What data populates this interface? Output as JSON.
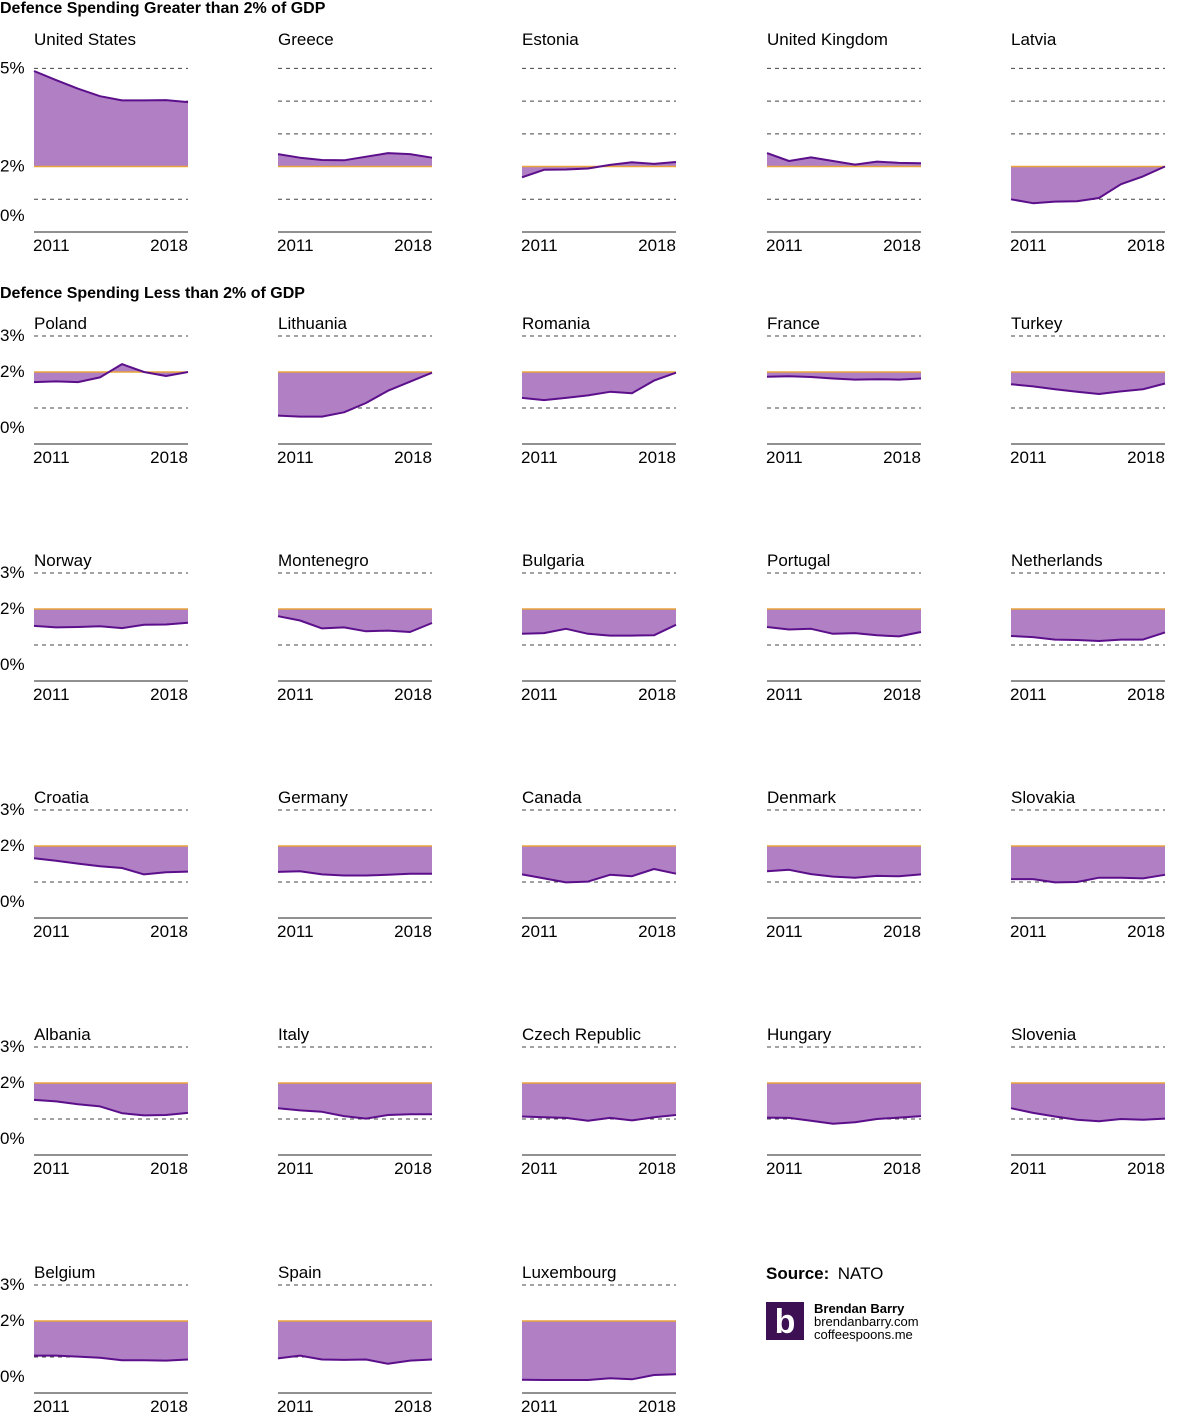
{
  "sections": [
    {
      "title": "Defence Spending Greater than 2% of GDP"
    },
    {
      "title": "Defence Spending Less than 2% of GDP"
    }
  ],
  "source": {
    "label": "Source:",
    "value": "NATO"
  },
  "brand": {
    "name": "Brendan Barry",
    "lines": [
      "brendanbarry.com",
      "coffeespoons.me"
    ],
    "logo_letter": "b",
    "logo_color": "#3d1054"
  },
  "colors": {
    "fill": "#b07fc4",
    "line": "#5c0f8b",
    "threshold": "#e8a33c",
    "dashed": "#444444",
    "baseline": "#222222"
  },
  "chart_data": [
    {
      "type": "area",
      "title": "United States",
      "x": [
        2011,
        2012,
        2013,
        2014,
        2015,
        2016,
        2017,
        2018
      ],
      "values": [
        4.92,
        4.64,
        4.38,
        4.15,
        4.02,
        4.02,
        4.03,
        3.97
      ],
      "threshold": 2,
      "ylim": [
        0,
        5.5
      ],
      "ytick_labels": [
        "5%",
        "2%",
        "0%"
      ],
      "xtick_labels": [
        "2011",
        "2018"
      ]
    },
    {
      "type": "area",
      "title": "Greece",
      "x": [
        2011,
        2012,
        2013,
        2014,
        2015,
        2016,
        2017,
        2018
      ],
      "values": [
        2.38,
        2.27,
        2.2,
        2.19,
        2.3,
        2.41,
        2.38,
        2.27
      ],
      "threshold": 2,
      "ylim": [
        0,
        5.5
      ],
      "xtick_labels": [
        "2011",
        "2018"
      ]
    },
    {
      "type": "area",
      "title": "Estonia",
      "x": [
        2011,
        2012,
        2013,
        2014,
        2015,
        2016,
        2017,
        2018
      ],
      "values": [
        1.67,
        1.9,
        1.91,
        1.94,
        2.05,
        2.13,
        2.08,
        2.14
      ],
      "threshold": 2,
      "ylim": [
        0,
        5.5
      ],
      "xtick_labels": [
        "2011",
        "2018"
      ]
    },
    {
      "type": "area",
      "title": "United Kingdom",
      "x": [
        2011,
        2012,
        2013,
        2014,
        2015,
        2016,
        2017,
        2018
      ],
      "values": [
        2.41,
        2.17,
        2.28,
        2.17,
        2.06,
        2.15,
        2.11,
        2.1
      ],
      "threshold": 2,
      "ylim": [
        0,
        5.5
      ],
      "xtick_labels": [
        "2011",
        "2018"
      ]
    },
    {
      "type": "area",
      "title": "Latvia",
      "x": [
        2011,
        2012,
        2013,
        2014,
        2015,
        2016,
        2017,
        2018
      ],
      "values": [
        1.0,
        0.88,
        0.93,
        0.94,
        1.04,
        1.46,
        1.7,
        2.0
      ],
      "threshold": 2,
      "ylim": [
        0,
        5.5
      ],
      "xtick_labels": [
        "2011",
        "2018"
      ]
    },
    {
      "type": "area",
      "title": "Poland",
      "x": [
        2011,
        2012,
        2013,
        2014,
        2015,
        2016,
        2017,
        2018
      ],
      "values": [
        1.72,
        1.74,
        1.72,
        1.85,
        2.22,
        2.0,
        1.89,
        2.0
      ],
      "threshold": 2,
      "ylim": [
        0,
        3
      ],
      "ytick_labels": [
        "3%",
        "2%",
        "0%"
      ],
      "xtick_labels": [
        "2011",
        "2018"
      ]
    },
    {
      "type": "area",
      "title": "Lithuania",
      "x": [
        2011,
        2012,
        2013,
        2014,
        2015,
        2016,
        2017,
        2018
      ],
      "values": [
        0.79,
        0.76,
        0.76,
        0.88,
        1.14,
        1.48,
        1.73,
        1.98
      ],
      "threshold": 2,
      "ylim": [
        0,
        3
      ],
      "xtick_labels": [
        "2011",
        "2018"
      ]
    },
    {
      "type": "area",
      "title": "Romania",
      "x": [
        2011,
        2012,
        2013,
        2014,
        2015,
        2016,
        2017,
        2018
      ],
      "values": [
        1.28,
        1.22,
        1.28,
        1.35,
        1.45,
        1.41,
        1.76,
        1.98
      ],
      "threshold": 2,
      "ylim": [
        0,
        3
      ],
      "xtick_labels": [
        "2011",
        "2018"
      ]
    },
    {
      "type": "area",
      "title": "France",
      "x": [
        2011,
        2012,
        2013,
        2014,
        2015,
        2016,
        2017,
        2018
      ],
      "values": [
        1.87,
        1.88,
        1.86,
        1.82,
        1.79,
        1.8,
        1.79,
        1.82
      ],
      "threshold": 2,
      "ylim": [
        0,
        3
      ],
      "xtick_labels": [
        "2011",
        "2018"
      ]
    },
    {
      "type": "area",
      "title": "Turkey",
      "x": [
        2011,
        2012,
        2013,
        2014,
        2015,
        2016,
        2017,
        2018
      ],
      "values": [
        1.66,
        1.6,
        1.52,
        1.45,
        1.39,
        1.46,
        1.52,
        1.68
      ],
      "threshold": 2,
      "ylim": [
        0,
        3
      ],
      "xtick_labels": [
        "2011",
        "2018"
      ]
    },
    {
      "type": "area",
      "title": "Norway",
      "x": [
        2011,
        2012,
        2013,
        2014,
        2015,
        2016,
        2017,
        2018
      ],
      "values": [
        1.53,
        1.49,
        1.5,
        1.52,
        1.47,
        1.56,
        1.57,
        1.62
      ],
      "threshold": 2,
      "ylim": [
        0,
        3
      ],
      "ytick_labels": [
        "3%",
        "2%",
        "0%"
      ],
      "xtick_labels": [
        "2011",
        "2018"
      ]
    },
    {
      "type": "area",
      "title": "Montenegro",
      "x": [
        2011,
        2012,
        2013,
        2014,
        2015,
        2016,
        2017,
        2018
      ],
      "values": [
        1.8,
        1.68,
        1.46,
        1.49,
        1.38,
        1.4,
        1.36,
        1.61
      ],
      "threshold": 2,
      "ylim": [
        0,
        3
      ],
      "xtick_labels": [
        "2011",
        "2018"
      ]
    },
    {
      "type": "area",
      "title": "Bulgaria",
      "x": [
        2011,
        2012,
        2013,
        2014,
        2015,
        2016,
        2017,
        2018
      ],
      "values": [
        1.31,
        1.33,
        1.45,
        1.31,
        1.26,
        1.26,
        1.27,
        1.56
      ],
      "threshold": 2,
      "ylim": [
        0,
        3
      ],
      "xtick_labels": [
        "2011",
        "2018"
      ]
    },
    {
      "type": "area",
      "title": "Portugal",
      "x": [
        2011,
        2012,
        2013,
        2014,
        2015,
        2016,
        2017,
        2018
      ],
      "values": [
        1.5,
        1.43,
        1.45,
        1.31,
        1.33,
        1.27,
        1.24,
        1.36
      ],
      "threshold": 2,
      "ylim": [
        0,
        3
      ],
      "xtick_labels": [
        "2011",
        "2018"
      ]
    },
    {
      "type": "area",
      "title": "Netherlands",
      "x": [
        2011,
        2012,
        2013,
        2014,
        2015,
        2016,
        2017,
        2018
      ],
      "values": [
        1.25,
        1.22,
        1.15,
        1.14,
        1.11,
        1.15,
        1.15,
        1.35
      ],
      "threshold": 2,
      "ylim": [
        0,
        3
      ],
      "xtick_labels": [
        "2011",
        "2018"
      ]
    },
    {
      "type": "area",
      "title": "Croatia",
      "x": [
        2011,
        2012,
        2013,
        2014,
        2015,
        2016,
        2017,
        2018
      ],
      "values": [
        1.66,
        1.59,
        1.51,
        1.44,
        1.39,
        1.21,
        1.27,
        1.29
      ],
      "threshold": 2,
      "ylim": [
        0,
        3
      ],
      "ytick_labels": [
        "3%",
        "2%",
        "0%"
      ],
      "xtick_labels": [
        "2011",
        "2018"
      ]
    },
    {
      "type": "area",
      "title": "Germany",
      "x": [
        2011,
        2012,
        2013,
        2014,
        2015,
        2016,
        2017,
        2018
      ],
      "values": [
        1.28,
        1.3,
        1.21,
        1.18,
        1.18,
        1.2,
        1.23,
        1.23
      ],
      "threshold": 2,
      "ylim": [
        0,
        3
      ],
      "xtick_labels": [
        "2011",
        "2018"
      ]
    },
    {
      "type": "area",
      "title": "Canada",
      "x": [
        2011,
        2012,
        2013,
        2014,
        2015,
        2016,
        2017,
        2018
      ],
      "values": [
        1.21,
        1.1,
        0.99,
        1.01,
        1.2,
        1.16,
        1.36,
        1.23
      ],
      "threshold": 2,
      "ylim": [
        0,
        3
      ],
      "xtick_labels": [
        "2011",
        "2018"
      ]
    },
    {
      "type": "area",
      "title": "Denmark",
      "x": [
        2011,
        2012,
        2013,
        2014,
        2015,
        2016,
        2017,
        2018
      ],
      "values": [
        1.3,
        1.34,
        1.22,
        1.15,
        1.12,
        1.17,
        1.16,
        1.21
      ],
      "threshold": 2,
      "ylim": [
        0,
        3
      ],
      "xtick_labels": [
        "2011",
        "2018"
      ]
    },
    {
      "type": "area",
      "title": "Slovakia",
      "x": [
        2011,
        2012,
        2013,
        2014,
        2015,
        2016,
        2017,
        2018
      ],
      "values": [
        1.08,
        1.08,
        0.99,
        1.0,
        1.12,
        1.12,
        1.1,
        1.2
      ],
      "threshold": 2,
      "ylim": [
        0,
        3
      ],
      "xtick_labels": [
        "2011",
        "2018"
      ]
    },
    {
      "type": "area",
      "title": "Albania",
      "x": [
        2011,
        2012,
        2013,
        2014,
        2015,
        2016,
        2017,
        2018
      ],
      "values": [
        1.53,
        1.49,
        1.41,
        1.35,
        1.16,
        1.1,
        1.11,
        1.17
      ],
      "threshold": 2,
      "ylim": [
        0,
        3
      ],
      "ytick_labels": [
        "3%",
        "2%",
        "0%"
      ],
      "xtick_labels": [
        "2011",
        "2018"
      ]
    },
    {
      "type": "area",
      "title": "Italy",
      "x": [
        2011,
        2012,
        2013,
        2014,
        2015,
        2016,
        2017,
        2018
      ],
      "values": [
        1.3,
        1.24,
        1.2,
        1.08,
        1.01,
        1.11,
        1.13,
        1.13
      ],
      "threshold": 2,
      "ylim": [
        0,
        3
      ],
      "xtick_labels": [
        "2011",
        "2018"
      ]
    },
    {
      "type": "area",
      "title": "Czech Republic",
      "x": [
        2011,
        2012,
        2013,
        2014,
        2015,
        2016,
        2017,
        2018
      ],
      "values": [
        1.07,
        1.05,
        1.03,
        0.95,
        1.03,
        0.96,
        1.05,
        1.11
      ],
      "threshold": 2,
      "ylim": [
        0,
        3
      ],
      "xtick_labels": [
        "2011",
        "2018"
      ]
    },
    {
      "type": "area",
      "title": "Hungary",
      "x": [
        2011,
        2012,
        2013,
        2014,
        2015,
        2016,
        2017,
        2018
      ],
      "values": [
        1.04,
        1.03,
        0.95,
        0.87,
        0.91,
        1.0,
        1.04,
        1.08
      ],
      "threshold": 2,
      "ylim": [
        0,
        3
      ],
      "xtick_labels": [
        "2011",
        "2018"
      ]
    },
    {
      "type": "area",
      "title": "Slovenia",
      "x": [
        2011,
        2012,
        2013,
        2014,
        2015,
        2016,
        2017,
        2018
      ],
      "values": [
        1.3,
        1.17,
        1.07,
        0.98,
        0.94,
        1.0,
        0.98,
        1.01
      ],
      "threshold": 2,
      "ylim": [
        0,
        3
      ],
      "xtick_labels": [
        "2011",
        "2018"
      ]
    },
    {
      "type": "area",
      "title": "Belgium",
      "x": [
        2011,
        2012,
        2013,
        2014,
        2015,
        2016,
        2017,
        2018
      ],
      "values": [
        1.04,
        1.04,
        1.01,
        0.98,
        0.91,
        0.91,
        0.9,
        0.93
      ],
      "threshold": 2,
      "ylim": [
        0,
        3
      ],
      "ytick_labels": [
        "3%",
        "2%",
        "0%"
      ],
      "xtick_labels": [
        "2011",
        "2018"
      ]
    },
    {
      "type": "area",
      "title": "Spain",
      "x": [
        2011,
        2012,
        2013,
        2014,
        2015,
        2016,
        2017,
        2018
      ],
      "values": [
        0.96,
        1.04,
        0.93,
        0.92,
        0.93,
        0.81,
        0.9,
        0.93
      ],
      "threshold": 2,
      "ylim": [
        0,
        3
      ],
      "xtick_labels": [
        "2011",
        "2018"
      ]
    },
    {
      "type": "area",
      "title": "Luxembourg",
      "x": [
        2011,
        2012,
        2013,
        2014,
        2015,
        2016,
        2017,
        2018
      ],
      "values": [
        0.37,
        0.36,
        0.36,
        0.36,
        0.41,
        0.38,
        0.5,
        0.52
      ],
      "threshold": 2,
      "ylim": [
        0,
        3
      ],
      "xtick_labels": [
        "2011",
        "2018"
      ]
    }
  ]
}
